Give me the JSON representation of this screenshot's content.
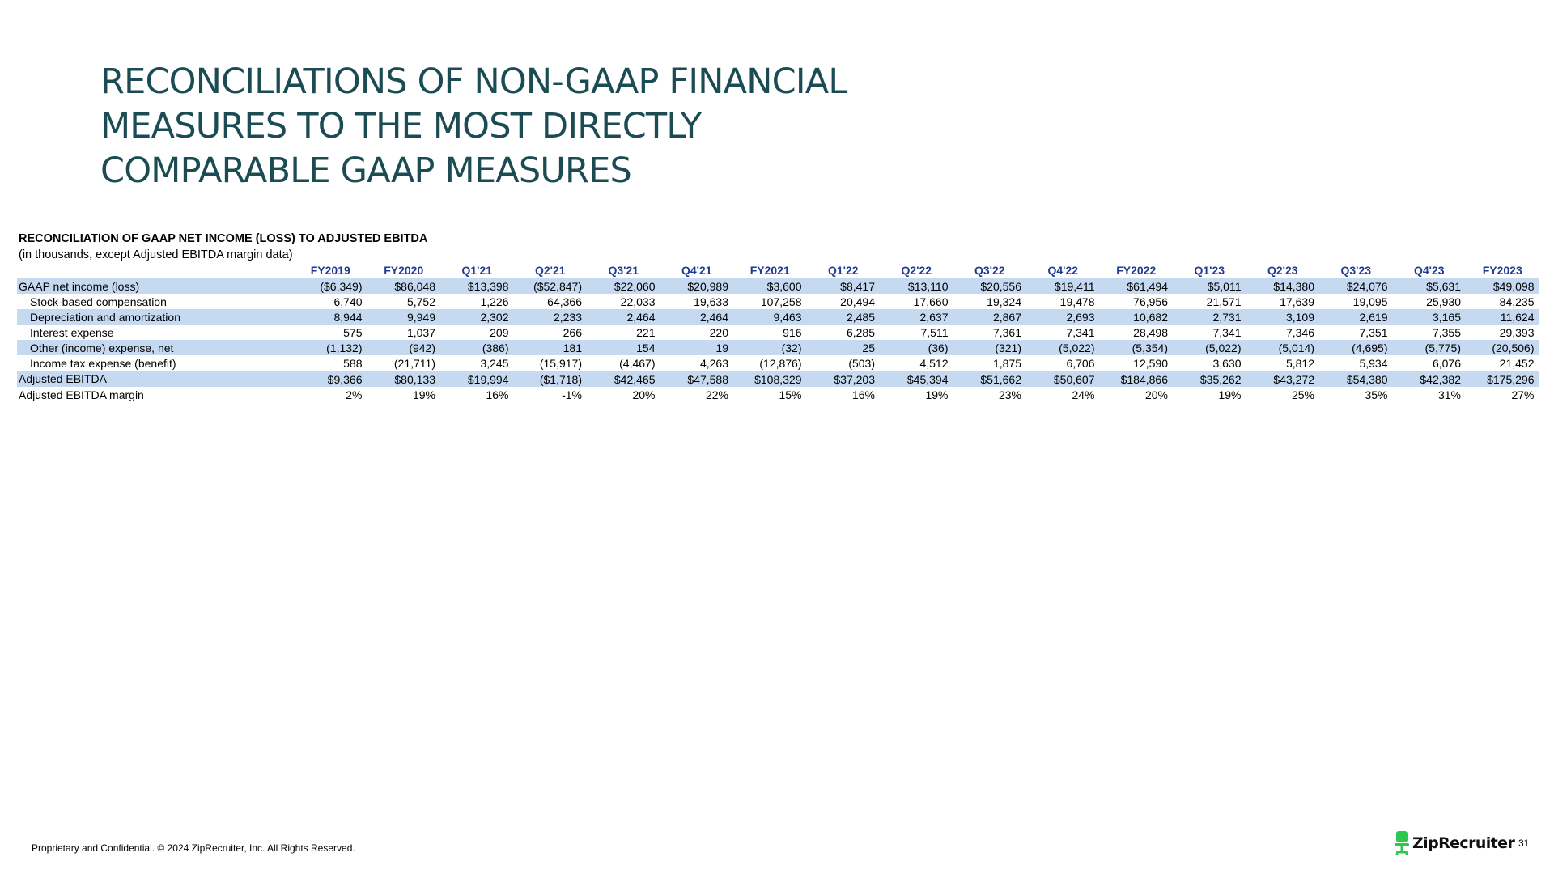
{
  "title_lines": [
    "RECONCILIATIONS OF NON-GAAP FINANCIAL",
    "MEASURES TO THE MOST DIRECTLY",
    "COMPARABLE GAAP MEASURES"
  ],
  "table": {
    "heading": "RECONCILIATION OF GAAP NET INCOME (LOSS) TO ADJUSTED EBITDA",
    "subheading": "(in thousands, except Adjusted EBITDA margin data)",
    "columns": [
      "FY2019",
      "FY2020",
      "Q1'21",
      "Q2'21",
      "Q3'21",
      "Q4'21",
      "FY2021",
      "Q1'22",
      "Q2'22",
      "Q3'22",
      "Q4'22",
      "FY2022",
      "Q1'23",
      "Q2'23",
      "Q3'23",
      "Q4'23",
      "FY2023"
    ],
    "rows": [
      {
        "label": "GAAP net income (loss)",
        "indent": false,
        "shaded": true,
        "total": false,
        "values": [
          "($6,349)",
          "$86,048",
          "$13,398",
          "($52,847)",
          "$22,060",
          "$20,989",
          "$3,600",
          "$8,417",
          "$13,110",
          "$20,556",
          "$19,411",
          "$61,494",
          "$5,011",
          "$14,380",
          "$24,076",
          "$5,631",
          "$49,098"
        ]
      },
      {
        "label": "Stock-based compensation",
        "indent": true,
        "shaded": false,
        "total": false,
        "values": [
          "6,740",
          "5,752",
          "1,226",
          "64,366",
          "22,033",
          "19,633",
          "107,258",
          "20,494",
          "17,660",
          "19,324",
          "19,478",
          "76,956",
          "21,571",
          "17,639",
          "19,095",
          "25,930",
          "84,235"
        ]
      },
      {
        "label": "Depreciation and amortization",
        "indent": true,
        "shaded": true,
        "total": false,
        "values": [
          "8,944",
          "9,949",
          "2,302",
          "2,233",
          "2,464",
          "2,464",
          "9,463",
          "2,485",
          "2,637",
          "2,867",
          "2,693",
          "10,682",
          "2,731",
          "3,109",
          "2,619",
          "3,165",
          "11,624"
        ]
      },
      {
        "label": "Interest expense",
        "indent": true,
        "shaded": false,
        "total": false,
        "values": [
          "575",
          "1,037",
          "209",
          "266",
          "221",
          "220",
          "916",
          "6,285",
          "7,511",
          "7,361",
          "7,341",
          "28,498",
          "7,341",
          "7,346",
          "7,351",
          "7,355",
          "29,393"
        ]
      },
      {
        "label": "Other (income) expense, net",
        "indent": true,
        "shaded": true,
        "total": false,
        "values": [
          "(1,132)",
          "(942)",
          "(386)",
          "181",
          "154",
          "19",
          "(32)",
          "25",
          "(36)",
          "(321)",
          "(5,022)",
          "(5,354)",
          "(5,022)",
          "(5,014)",
          "(4,695)",
          "(5,775)",
          "(20,506)"
        ]
      },
      {
        "label": "Income tax expense (benefit)",
        "indent": true,
        "shaded": false,
        "total": false,
        "values": [
          "588",
          "(21,711)",
          "3,245",
          "(15,917)",
          "(4,467)",
          "4,263",
          "(12,876)",
          "(503)",
          "4,512",
          "1,875",
          "6,706",
          "12,590",
          "3,630",
          "5,812",
          "5,934",
          "6,076",
          "21,452"
        ]
      },
      {
        "label": "Adjusted EBITDA",
        "indent": false,
        "shaded": true,
        "total": true,
        "values": [
          "$9,366",
          "$80,133",
          "$19,994",
          "($1,718)",
          "$42,465",
          "$47,588",
          "$108,329",
          "$37,203",
          "$45,394",
          "$51,662",
          "$50,607",
          "$184,866",
          "$35,262",
          "$43,272",
          "$54,380",
          "$42,382",
          "$175,296"
        ]
      },
      {
        "label": "Adjusted EBITDA margin",
        "indent": false,
        "shaded": false,
        "total": false,
        "values": [
          "2%",
          "19%",
          "16%",
          "-1%",
          "20%",
          "22%",
          "15%",
          "16%",
          "19%",
          "23%",
          "24%",
          "20%",
          "19%",
          "25%",
          "35%",
          "31%",
          "27%"
        ]
      }
    ]
  },
  "footer": {
    "text": "Proprietary and Confidential. © 2024 ZipRecruiter, Inc. All Rights Reserved.",
    "logo_text": "ZipRecruiter",
    "logo_icon": "chair-icon",
    "logo_color": "#2cc84d",
    "page_number": "31"
  },
  "colors": {
    "title": "#1b4c54",
    "column_header": "#1f3a93",
    "row_shade": "#c5d9f1"
  }
}
